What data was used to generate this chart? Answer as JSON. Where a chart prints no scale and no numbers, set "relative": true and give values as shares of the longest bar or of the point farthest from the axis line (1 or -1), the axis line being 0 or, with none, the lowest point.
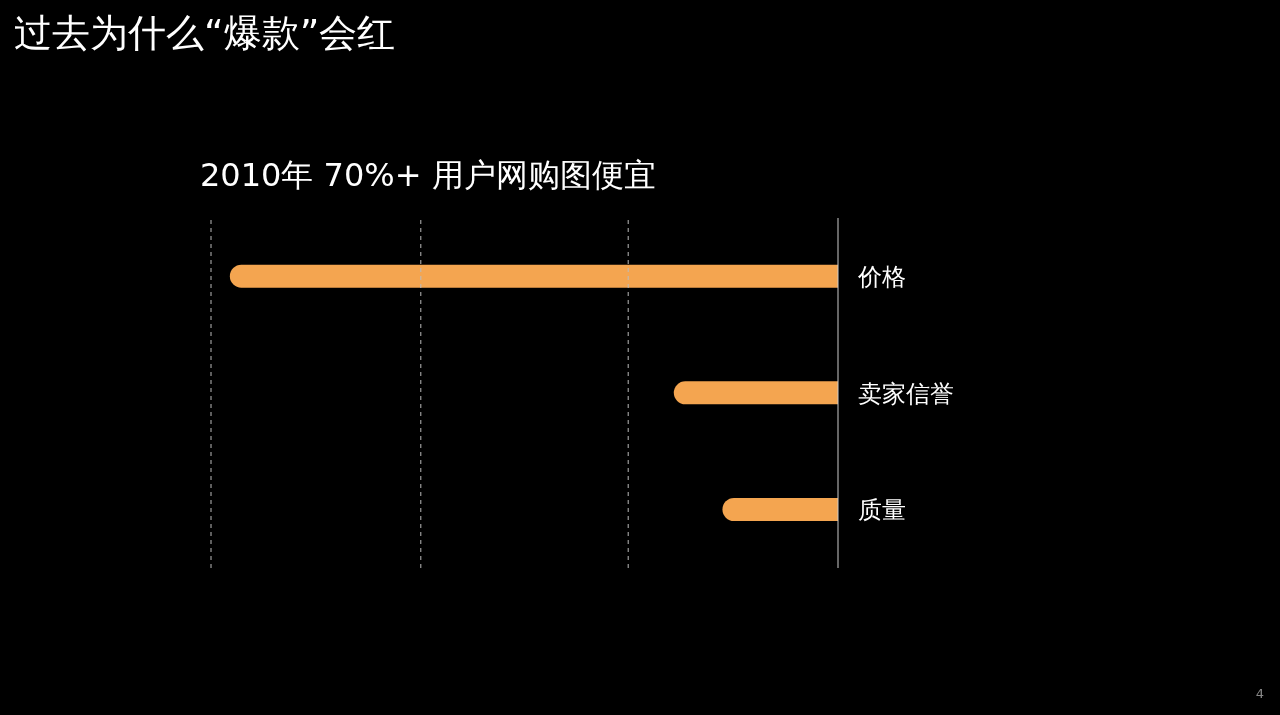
{
  "chart_data": {
    "type": "bar",
    "orientation": "horizontal",
    "relative": true,
    "title": "过去为什么“爆款”会红",
    "subtitle": "2010年 70%+ 用户网购图便宜",
    "categories": [
      "价格",
      "卖家信誉",
      "质量"
    ],
    "values": [
      -1,
      -0.27,
      -0.19
    ],
    "color": "#f4a550",
    "ref_lines": [
      {
        "axis": "x",
        "value": -0.345,
        "color": "#bbbbbb",
        "line_style": "dashed"
      },
      {
        "axis": "x",
        "value": -0.686,
        "color": "#bbbbbb",
        "line_style": "dashed"
      },
      {
        "axis": "x",
        "value": -1.031,
        "color": "#bbbbbb",
        "line_style": "dashed"
      }
    ],
    "annotations": [
      "4"
    ]
  }
}
